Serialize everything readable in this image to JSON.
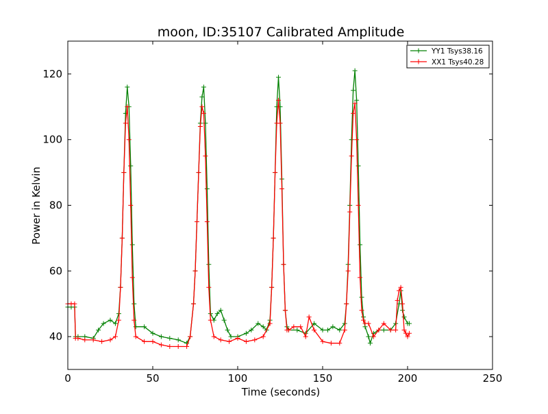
{
  "chart_data": {
    "type": "line",
    "title": "moon, ID:35107 Calibrated Amplitude",
    "xlabel": "Time (seconds)",
    "ylabel": "Power in Kelvin",
    "xlim": [
      0,
      250
    ],
    "ylim": [
      30,
      130
    ],
    "xticks": [
      "0",
      "50",
      "100",
      "150",
      "200",
      "250"
    ],
    "yticks": [
      "40",
      "60",
      "80",
      "100",
      "120"
    ],
    "grid": false,
    "legend_position": "top-right",
    "marker": "plus",
    "series": [
      {
        "name": "YY1 Tsys38.16",
        "color": "#008000",
        "x": [
          0,
          2,
          4,
          4.5,
          6,
          10,
          15,
          18,
          21,
          25,
          28,
          30,
          31,
          32,
          33,
          34,
          35,
          36,
          37,
          38,
          39,
          40,
          45,
          50,
          55,
          60,
          65,
          70,
          72,
          74,
          75,
          76,
          77,
          78,
          79,
          80,
          81,
          82,
          83,
          84,
          86,
          88,
          90,
          92,
          94,
          96,
          100,
          105,
          108,
          112,
          115,
          117,
          119,
          120,
          121,
          122,
          123,
          124,
          125,
          126,
          127,
          128,
          129,
          130,
          135,
          140,
          145,
          150,
          153,
          156,
          160,
          163,
          164,
          165,
          166,
          167,
          168,
          169,
          170,
          171,
          172,
          173,
          174,
          175,
          177,
          178,
          180,
          183,
          186,
          190,
          193,
          195,
          196,
          197,
          198,
          200,
          201
        ],
        "y": [
          49,
          49,
          49,
          40,
          40,
          40,
          39.5,
          42,
          44,
          45,
          44,
          47,
          55,
          70,
          90,
          108,
          116,
          110,
          92,
          68,
          50,
          43,
          43,
          41,
          40,
          39.5,
          39,
          38,
          40,
          50,
          60,
          75,
          90,
          105,
          113,
          116,
          105,
          85,
          62,
          47,
          45,
          47,
          48,
          45,
          42,
          40,
          40,
          41,
          42,
          44,
          43,
          42,
          45,
          55,
          70,
          90,
          110,
          119,
          110,
          88,
          62,
          48,
          43,
          42,
          42,
          41,
          44,
          42,
          42,
          43,
          42,
          44,
          50,
          62,
          80,
          100,
          115,
          121,
          112,
          92,
          68,
          52,
          46,
          43,
          40,
          38,
          41,
          42,
          42,
          42,
          44,
          50,
          54,
          48,
          46,
          44,
          44
        ]
      },
      {
        "name": "XX1 Tsys40.28",
        "color": "#ff0000",
        "x": [
          0,
          2,
          4,
          4.5,
          6,
          10,
          15,
          20,
          25,
          28,
          30,
          31,
          32,
          33,
          34,
          35,
          36,
          37,
          38,
          39,
          40,
          45,
          50,
          55,
          60,
          65,
          70,
          72,
          74,
          75,
          76,
          77,
          78,
          79,
          80,
          81,
          82,
          83,
          84,
          86,
          90,
          95,
          100,
          105,
          110,
          115,
          119,
          120,
          121,
          122,
          123,
          124,
          125,
          126,
          127,
          128,
          129,
          130,
          133,
          137,
          140,
          142,
          145,
          150,
          155,
          160,
          163,
          164,
          165,
          166,
          167,
          168,
          169,
          170,
          171,
          172,
          173,
          174,
          175,
          177,
          180,
          183,
          186,
          190,
          193,
          194,
          195,
          196,
          197,
          198,
          199,
          200,
          201
        ],
        "y": [
          50,
          50,
          50,
          39.5,
          39.5,
          39,
          39,
          38.5,
          39,
          40,
          45,
          55,
          70,
          90,
          105,
          110,
          100,
          80,
          58,
          45,
          40,
          38.5,
          38.5,
          37.5,
          37,
          37,
          37,
          40,
          50,
          60,
          75,
          90,
          104,
          110,
          108,
          95,
          75,
          55,
          45,
          40,
          39,
          38.5,
          39.5,
          38.5,
          39,
          40,
          44,
          55,
          70,
          90,
          105,
          112,
          105,
          85,
          62,
          48,
          42,
          42,
          43,
          43,
          40,
          46,
          42,
          38.5,
          38,
          38,
          42,
          50,
          60,
          78,
          95,
          108,
          111,
          100,
          80,
          58,
          48,
          45,
          44,
          44,
          40,
          42,
          44,
          42,
          42,
          51,
          54,
          55,
          50,
          42,
          41,
          40,
          41
        ]
      }
    ]
  }
}
